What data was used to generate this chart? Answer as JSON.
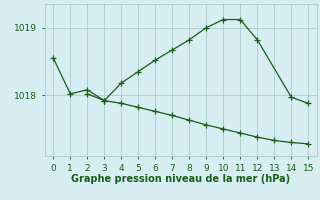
{
  "line1_x": [
    0,
    1,
    2,
    3,
    4,
    5,
    6,
    7,
    8,
    9,
    10,
    11,
    12,
    14,
    15
  ],
  "line1_y": [
    1018.55,
    1018.02,
    1018.08,
    1017.92,
    1018.18,
    1018.35,
    1018.52,
    1018.67,
    1018.82,
    1019.0,
    1019.12,
    1019.12,
    1018.82,
    1017.97,
    1017.88
  ],
  "line2_x": [
    2,
    3,
    4,
    5,
    6,
    7,
    8,
    9,
    10,
    11,
    12,
    13,
    14,
    15
  ],
  "line2_y": [
    1018.02,
    1017.92,
    1017.88,
    1017.82,
    1017.76,
    1017.7,
    1017.63,
    1017.56,
    1017.5,
    1017.44,
    1017.38,
    1017.33,
    1017.3,
    1017.28
  ],
  "color": "#1a5c1a",
  "bg_color": "#d6eef2",
  "grid_color": "#aacccc",
  "xlabel": "Graphe pression niveau de la mer (hPa)",
  "yticks": [
    1018,
    1019
  ],
  "ylim": [
    1017.1,
    1019.35
  ],
  "xlim": [
    -0.5,
    15.5
  ],
  "xticks": [
    0,
    1,
    2,
    3,
    4,
    5,
    6,
    7,
    8,
    9,
    10,
    11,
    12,
    13,
    14,
    15
  ]
}
